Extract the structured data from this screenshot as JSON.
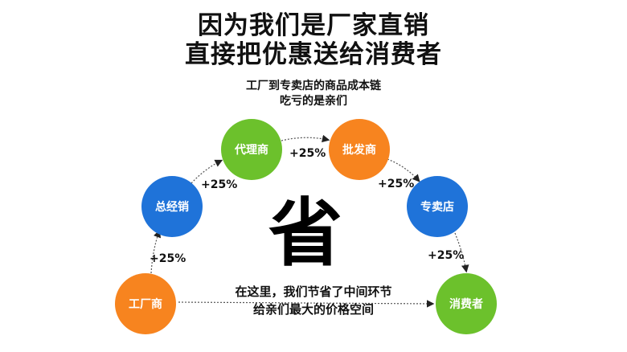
{
  "title_lines": [
    "因为我们是厂家直销",
    "直接把优惠送给消费者"
  ],
  "subtitle_lines": [
    "工厂到专卖店的商品成本链",
    "吃亏的是亲们"
  ],
  "center_char": "省",
  "note_lines": [
    "在这里，我们节省了中间环节",
    "给亲们最大的价格空间"
  ],
  "nodes": [
    {
      "label": "工厂商",
      "color": "#F7841F"
    },
    {
      "label": "总经销",
      "color": "#1F73D9"
    },
    {
      "label": "代理商",
      "color": "#6CC12C"
    },
    {
      "label": "批发商",
      "color": "#F7841F"
    },
    {
      "label": "专卖店",
      "color": "#1F73D9"
    },
    {
      "label": "消费者",
      "color": "#6CC12C"
    }
  ],
  "markups": [
    "+25%",
    "+25%",
    "+25%",
    "+25%",
    "+25%"
  ]
}
